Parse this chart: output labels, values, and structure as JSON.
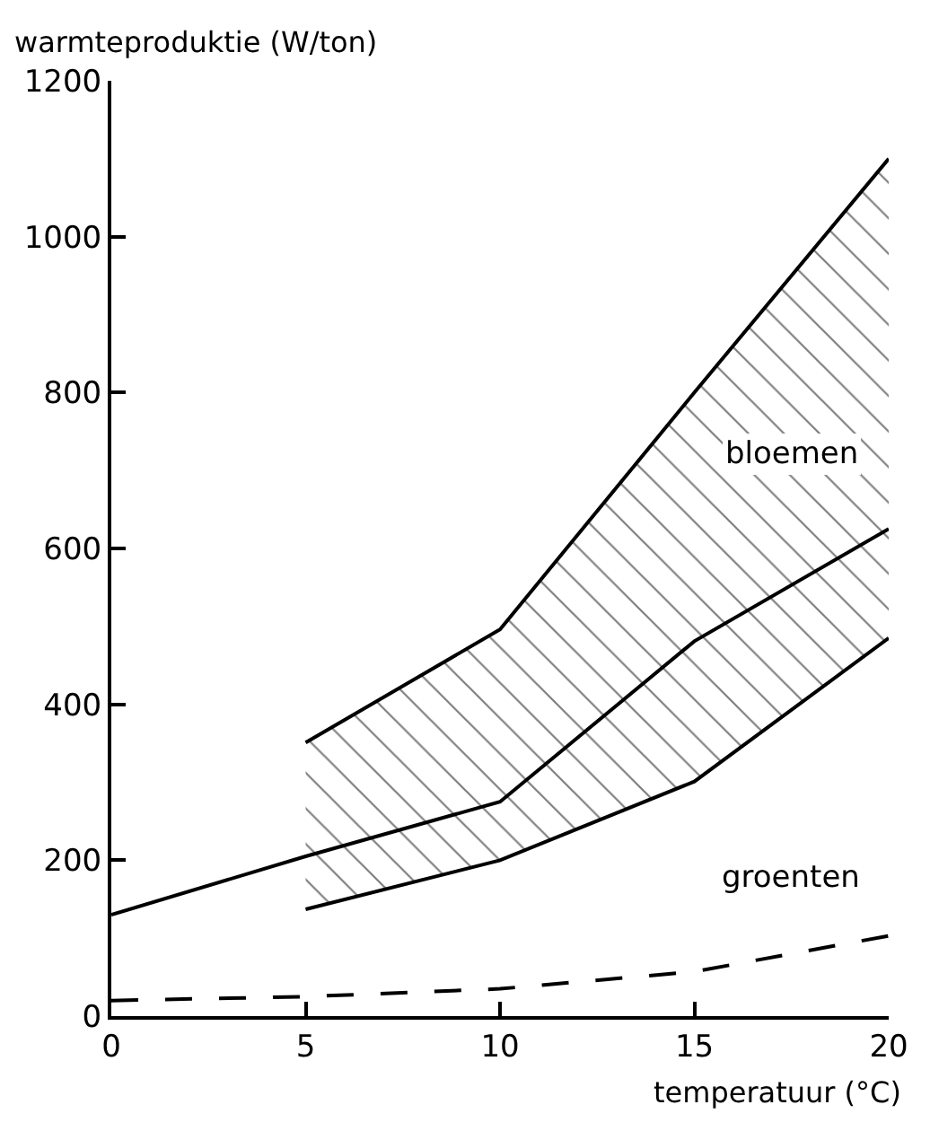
{
  "chart_data": {
    "type": "line",
    "xlabel": "temperatuur (°C)",
    "ylabel": "warmteproduktie (W/ton)",
    "xlim": [
      0,
      20
    ],
    "ylim": [
      0,
      1200
    ],
    "xticks": [
      0,
      5,
      10,
      15,
      20
    ],
    "yticks": [
      0,
      200,
      400,
      600,
      800,
      1000,
      1200
    ],
    "legend": false,
    "marker": "none",
    "series": [
      {
        "name": "bloemen",
        "color": "#000000",
        "line_style": "solid",
        "x": [
          0,
          5,
          10,
          15,
          20
        ],
        "values": [
          130,
          205,
          275,
          481,
          625
        ],
        "lower": [
          null,
          137,
          200,
          301,
          485
        ],
        "upper": [
          null,
          351,
          496,
          800,
          1100
        ]
      },
      {
        "color": "#000000",
        "line_style": "solid",
        "x": [
          5,
          10,
          15,
          20
        ],
        "values": [
          351,
          496,
          800,
          1100
        ]
      },
      {
        "color": "#000000",
        "line_style": "solid",
        "x": [
          5,
          10,
          15,
          20
        ],
        "values": [
          137,
          200,
          301,
          485
        ]
      },
      {
        "name": "groenten",
        "color": "#000000",
        "line_style": "dashed",
        "x": [
          0,
          5,
          10,
          15,
          20
        ],
        "values": [
          20,
          25,
          35,
          57,
          103
        ]
      }
    ]
  }
}
